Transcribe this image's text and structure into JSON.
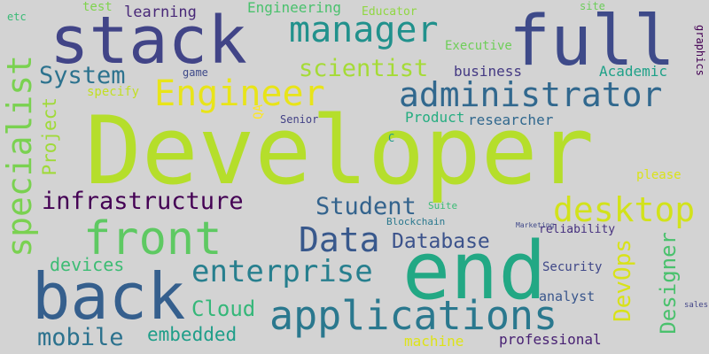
{
  "words": [
    {
      "text": "Developer",
      "color": "#b5de2b"
    },
    {
      "text": "end",
      "color": "#22a884"
    },
    {
      "text": "full",
      "color": "#3e4a89"
    },
    {
      "text": "stack",
      "color": "#414487"
    },
    {
      "text": "back",
      "color": "#355f8d"
    },
    {
      "text": "applications",
      "color": "#2a788e"
    },
    {
      "text": "front",
      "color": "#5ec962"
    },
    {
      "text": "administrator",
      "color": "#31688e"
    },
    {
      "text": "manager",
      "color": "#21918c"
    },
    {
      "text": "Engineer",
      "color": "#e8e419"
    },
    {
      "text": "specialist",
      "color": "#7ad151"
    },
    {
      "text": "desktop",
      "color": "#d2e21b"
    },
    {
      "text": "Data",
      "color": "#38588c"
    },
    {
      "text": "enterprise",
      "color": "#277f8e"
    },
    {
      "text": "infrastructure",
      "color": "#440154"
    },
    {
      "text": "scientist",
      "color": "#a5db36"
    },
    {
      "text": "System",
      "color": "#2c728e"
    },
    {
      "text": "mobile",
      "color": "#2c728e"
    },
    {
      "text": "Student",
      "color": "#33638d"
    },
    {
      "text": "Cloud",
      "color": "#35b779"
    },
    {
      "text": "Database",
      "color": "#3b528b"
    },
    {
      "text": "DevOps",
      "color": "#d8e219"
    },
    {
      "text": "Designer",
      "color": "#4ac16d"
    },
    {
      "text": "embedded",
      "color": "#1f9e89"
    },
    {
      "text": "devices",
      "color": "#3dbc74"
    },
    {
      "text": "Project",
      "color": "#a0da39"
    },
    {
      "text": "business",
      "color": "#443983"
    },
    {
      "text": "researcher",
      "color": "#31688e"
    },
    {
      "text": "Academic",
      "color": "#1fa188"
    },
    {
      "text": "learning",
      "color": "#482878"
    },
    {
      "text": "Engineering",
      "color": "#4ac16d"
    },
    {
      "text": "professional",
      "color": "#482173"
    },
    {
      "text": "machine",
      "color": "#dde318"
    },
    {
      "text": "Product",
      "color": "#26ad81"
    },
    {
      "text": "Executive",
      "color": "#6ece58"
    },
    {
      "text": "analyst",
      "color": "#39568c"
    },
    {
      "text": "Security",
      "color": "#3f4788"
    },
    {
      "text": "reliability",
      "color": "#46307e"
    },
    {
      "text": "please",
      "color": "#dae319"
    },
    {
      "text": "specify",
      "color": "#c2df23"
    },
    {
      "text": "Educator",
      "color": "#90d743"
    },
    {
      "text": "game",
      "color": "#3e4989"
    },
    {
      "text": "test",
      "color": "#7fd34e"
    },
    {
      "text": "QA",
      "color": "#fde725"
    },
    {
      "text": "Senior",
      "color": "#424186"
    },
    {
      "text": "site",
      "color": "#6ccd5a"
    },
    {
      "text": "graphics",
      "color": "#440154"
    },
    {
      "text": "Suite",
      "color": "#3bbb75"
    },
    {
      "text": "Blockchain",
      "color": "#2a788e"
    },
    {
      "text": "C",
      "color": "#1f9a8a"
    },
    {
      "text": "etc",
      "color": "#3aba76"
    },
    {
      "text": "Marketing",
      "color": "#3f4889"
    },
    {
      "text": "sales",
      "color": "#414487"
    }
  ]
}
